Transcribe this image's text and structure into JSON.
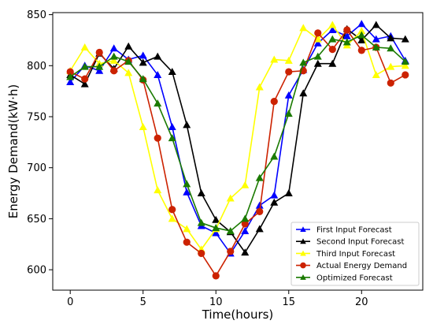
{
  "chart_data": {
    "type": "line",
    "title": "",
    "xlabel": "Time(hours)",
    "ylabel": "Energy Demand(kW·h)",
    "xlim": [
      -1.2,
      24.2
    ],
    "ylim": [
      580,
      852
    ],
    "x_ticks": [
      0,
      5,
      10,
      15,
      20
    ],
    "y_ticks": [
      600,
      650,
      700,
      750,
      800,
      850
    ],
    "grid": false,
    "legend_position": "bottom-right",
    "x": [
      0,
      1,
      2,
      3,
      4,
      5,
      6,
      7,
      8,
      9,
      10,
      11,
      12,
      13,
      14,
      15,
      16,
      17,
      18,
      19,
      20,
      21,
      22,
      23
    ],
    "series": [
      {
        "name": "First Input Forecast",
        "color": "#0000ff",
        "marker": "triangle",
        "values": [
          784,
          800,
          795,
          817,
          806,
          810,
          791,
          740,
          676,
          643,
          636,
          616,
          638,
          663,
          673,
          771,
          796,
          822,
          835,
          829,
          841,
          826,
          829,
          805
        ]
      },
      {
        "name": "Second Input Forecast",
        "color": "#000000",
        "marker": "triangle",
        "values": [
          791,
          782,
          812,
          797,
          819,
          803,
          809,
          794,
          742,
          675,
          649,
          637,
          617,
          640,
          666,
          675,
          773,
          802,
          802,
          836,
          825,
          840,
          827,
          826
        ]
      },
      {
        "name": "Third Input Forecast",
        "color": "#ffff00",
        "marker": "triangle",
        "values": [
          795,
          818,
          802,
          805,
          793,
          740,
          678,
          650,
          640,
          620,
          640,
          670,
          683,
          779,
          806,
          805,
          837,
          826,
          840,
          820,
          834,
          791,
          799,
          800
        ]
      },
      {
        "name": "Actual Energy Demand",
        "color": "#cc2200",
        "marker": "circle",
        "values": [
          794,
          787,
          813,
          795,
          805,
          786,
          729,
          659,
          627,
          616,
          594,
          618,
          645,
          657,
          765,
          794,
          795,
          832,
          816,
          835,
          815,
          818,
          783,
          791
        ]
      },
      {
        "name": "Optimized Forecast",
        "color": "#1a7a00",
        "marker": "triangle",
        "values": [
          789,
          799,
          799,
          809,
          804,
          787,
          763,
          729,
          684,
          646,
          641,
          638,
          650,
          690,
          711,
          753,
          803,
          809,
          826,
          823,
          830,
          818,
          817,
          804
        ]
      }
    ]
  }
}
